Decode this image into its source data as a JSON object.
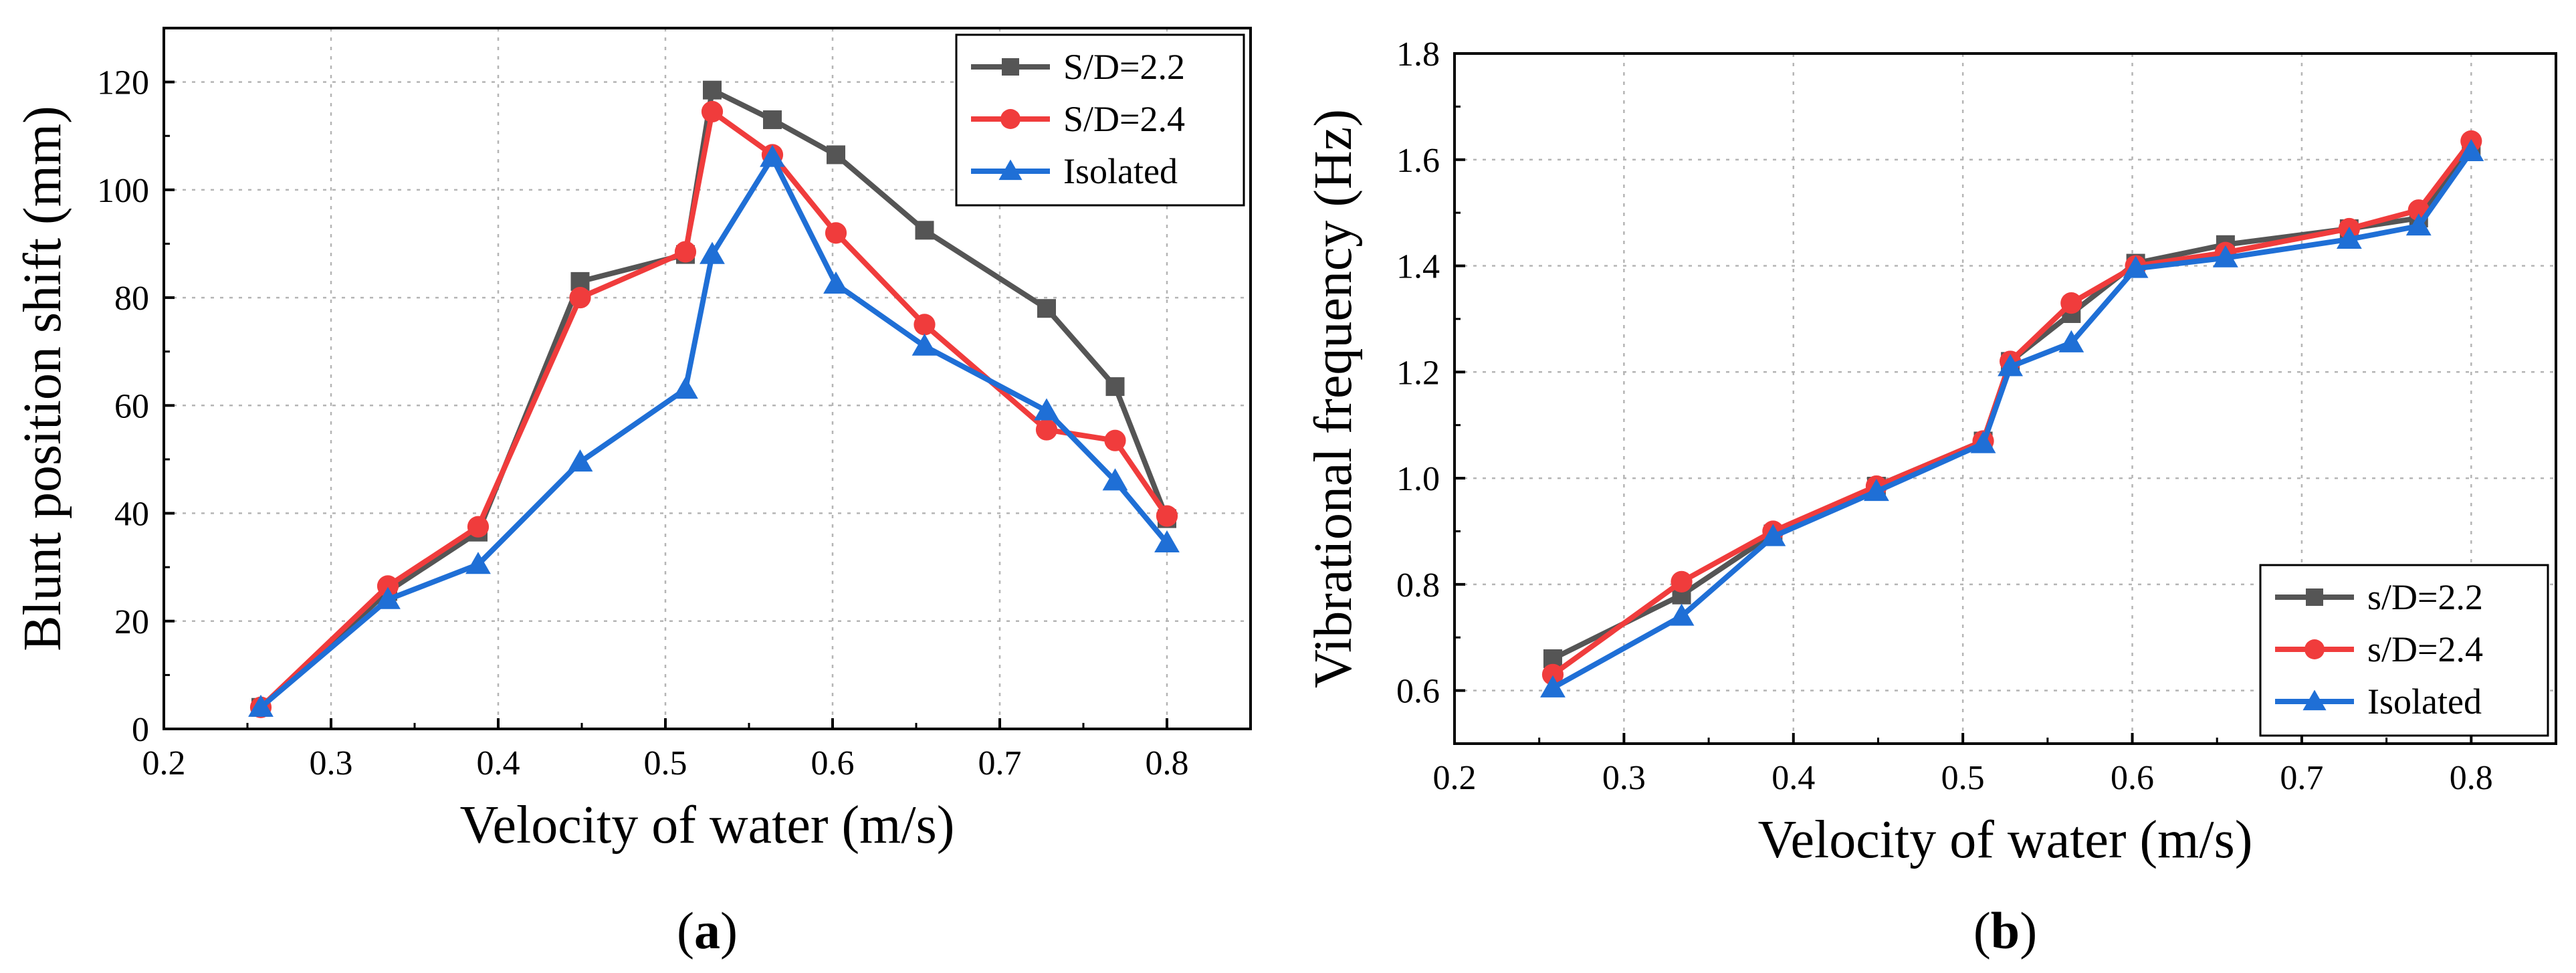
{
  "chart_data": [
    {
      "type": "line",
      "panel_label": {
        "open": "(",
        "letter": "a",
        "close": ")"
      },
      "title": "",
      "xlabel": "Velocity of water (m/s)",
      "ylabel": "Blunt position shift (mm)",
      "xlim": [
        0.2,
        0.85
      ],
      "ylim": [
        0,
        130
      ],
      "xticks": [
        0.2,
        0.3,
        0.4,
        0.5,
        0.6,
        0.7,
        0.8
      ],
      "xtick_labels": [
        "0.2",
        "0.3",
        "0.4",
        "0.5",
        "0.6",
        "0.7",
        "0.8"
      ],
      "yticks": [
        0,
        20,
        40,
        60,
        80,
        100,
        120
      ],
      "ytick_labels": [
        "0",
        "20",
        "40",
        "60",
        "80",
        "100",
        "120"
      ],
      "grid": true,
      "legend_position": "top-right",
      "series": [
        {
          "name": "S/D=2.2",
          "color": "#555555",
          "marker": "square",
          "x": [
            0.258,
            0.334,
            0.388,
            0.449,
            0.512,
            0.528,
            0.564,
            0.602,
            0.655,
            0.728,
            0.769,
            0.8
          ],
          "y": [
            4.0,
            25.5,
            36.5,
            83.0,
            88.0,
            118.5,
            113.0,
            106.5,
            92.5,
            78.0,
            63.5,
            39.0
          ]
        },
        {
          "name": "S/D=2.4",
          "color": "#f03c3c",
          "marker": "circle",
          "x": [
            0.258,
            0.334,
            0.388,
            0.449,
            0.512,
            0.528,
            0.564,
            0.602,
            0.655,
            0.728,
            0.769,
            0.8
          ],
          "y": [
            4.0,
            26.5,
            37.5,
            80.0,
            88.5,
            114.5,
            106.5,
            92.0,
            75.0,
            55.5,
            53.5,
            39.5
          ]
        },
        {
          "name": "Isolated",
          "color": "#1f6fd6",
          "marker": "triangle",
          "x": [
            0.258,
            0.334,
            0.388,
            0.449,
            0.512,
            0.528,
            0.564,
            0.602,
            0.655,
            0.728,
            0.769,
            0.8
          ],
          "y": [
            4.0,
            24.0,
            30.5,
            49.5,
            63.0,
            88.0,
            106.0,
            82.5,
            71.0,
            59.0,
            46.0,
            34.5
          ]
        }
      ]
    },
    {
      "type": "line",
      "panel_label": {
        "open": "(",
        "letter": "b",
        "close": ")"
      },
      "title": "",
      "xlabel": "Velocity of water (m/s)",
      "ylabel": "Vibrational frequency (Hz)",
      "xlim": [
        0.2,
        0.85
      ],
      "ylim": [
        0.5,
        1.8
      ],
      "xticks": [
        0.2,
        0.3,
        0.4,
        0.5,
        0.6,
        0.7,
        0.8
      ],
      "xtick_labels": [
        "0.2",
        "0.3",
        "0.4",
        "0.5",
        "0.6",
        "0.7",
        "0.8"
      ],
      "yticks": [
        0.6,
        0.8,
        1.0,
        1.2,
        1.4,
        1.6,
        1.8
      ],
      "ytick_labels": [
        "0.6",
        "0.8",
        "1.0",
        "1.2",
        "1.4",
        "1.6",
        "1.8"
      ],
      "grid": true,
      "legend_position": "bottom-right",
      "series": [
        {
          "name": "s/D=2.2",
          "color": "#555555",
          "marker": "square",
          "x": [
            0.258,
            0.334,
            0.388,
            0.449,
            0.512,
            0.528,
            0.564,
            0.602,
            0.655,
            0.728,
            0.769,
            0.8
          ],
          "y": [
            0.66,
            0.78,
            0.895,
            0.985,
            1.07,
            1.22,
            1.31,
            1.405,
            1.44,
            1.47,
            1.49,
            1.625
          ]
        },
        {
          "name": "s/D=2.4",
          "color": "#f03c3c",
          "marker": "circle",
          "x": [
            0.258,
            0.334,
            0.388,
            0.449,
            0.512,
            0.528,
            0.564,
            0.602,
            0.655,
            0.728,
            0.769,
            0.8
          ],
          "y": [
            0.63,
            0.805,
            0.9,
            0.985,
            1.07,
            1.22,
            1.33,
            1.4,
            1.425,
            1.47,
            1.505,
            1.635
          ]
        },
        {
          "name": "Isolated",
          "color": "#1f6fd6",
          "marker": "triangle",
          "x": [
            0.258,
            0.334,
            0.388,
            0.449,
            0.512,
            0.528,
            0.564,
            0.602,
            0.655,
            0.728,
            0.769,
            0.8
          ],
          "y": [
            0.605,
            0.74,
            0.89,
            0.975,
            1.065,
            1.21,
            1.255,
            1.395,
            1.415,
            1.45,
            1.475,
            1.615
          ]
        }
      ]
    }
  ]
}
